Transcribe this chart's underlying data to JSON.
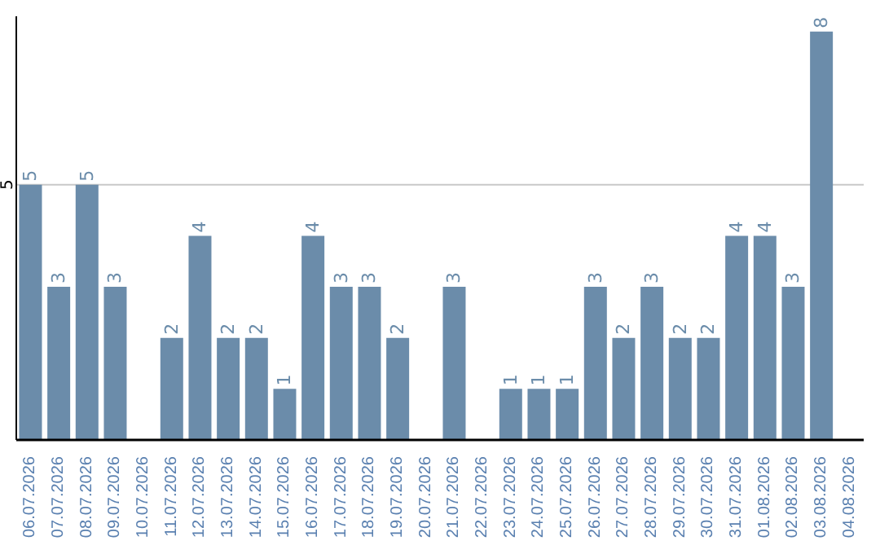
{
  "chart_data": {
    "type": "bar",
    "categories": [
      "06.07.2026",
      "07.07.2026",
      "08.07.2026",
      "09.07.2026",
      "10.07.2026",
      "11.07.2026",
      "12.07.2026",
      "13.07.2026",
      "14.07.2026",
      "15.07.2026",
      "16.07.2026",
      "17.07.2026",
      "18.07.2026",
      "19.07.2026",
      "20.07.2026",
      "21.07.2026",
      "22.07.2026",
      "23.07.2026",
      "24.07.2026",
      "25.07.2026",
      "26.07.2026",
      "27.07.2026",
      "28.07.2026",
      "29.07.2026",
      "30.07.2026",
      "31.07.2026",
      "01.08.2026",
      "02.08.2026",
      "03.08.2026",
      "04.08.2026"
    ],
    "values": [
      5,
      3,
      5,
      3,
      null,
      2,
      4,
      2,
      2,
      1,
      4,
      3,
      3,
      2,
      null,
      3,
      null,
      1,
      1,
      1,
      3,
      2,
      3,
      2,
      2,
      4,
      4,
      3,
      8,
      null
    ],
    "color": "#6b8caa",
    "ylim": [
      0,
      8.3
    ],
    "yticks": [
      5
    ],
    "grid": "y",
    "data_labels": true
  }
}
